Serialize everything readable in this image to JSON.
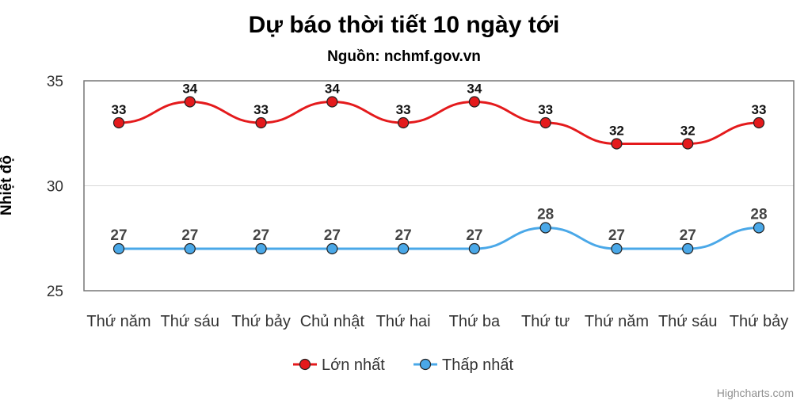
{
  "chart_data": {
    "type": "line",
    "title": "Dự báo thời tiết 10 ngày tới",
    "subtitle": "Nguồn: nchmf.gov.vn",
    "ylabel": "Nhiệt độ",
    "xlabel": "",
    "ylim": [
      25,
      35
    ],
    "yticks": [
      25,
      30,
      35
    ],
    "grid": true,
    "legend_position": "bottom",
    "categories": [
      "Thứ năm",
      "Thứ sáu",
      "Thứ bảy",
      "Chủ nhật",
      "Thứ hai",
      "Thứ ba",
      "Thứ tư",
      "Thứ năm",
      "Thứ sáu",
      "Thứ bảy"
    ],
    "series": [
      {
        "name": "Lớn nhất",
        "color": "#e41a1c",
        "values": [
          33,
          34,
          33,
          34,
          33,
          34,
          33,
          32,
          32,
          33
        ]
      },
      {
        "name": "Thấp nhất",
        "color": "#4aa8e8",
        "values": [
          27,
          27,
          27,
          27,
          27,
          27,
          28,
          27,
          27,
          28
        ]
      }
    ]
  },
  "credits": "Highcharts.com"
}
